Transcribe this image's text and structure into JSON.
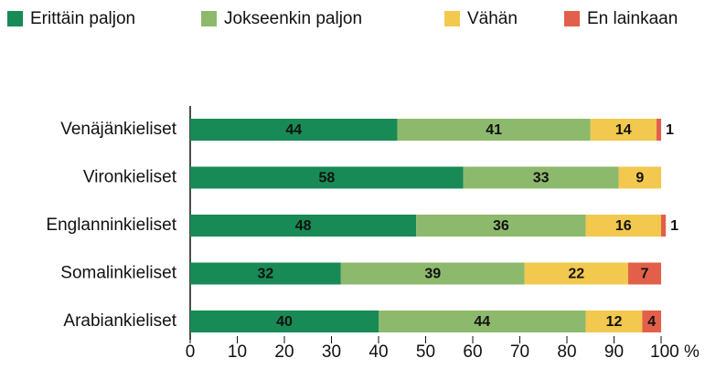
{
  "chart_data": {
    "type": "stacked-barh",
    "categories": [
      "Venäjänkieliset",
      "Vironkieliset",
      "Englanninkieliset",
      "Somalinkieliset",
      "Arabiankieliset"
    ],
    "series": [
      {
        "name": "Erittäin paljon",
        "color": "#188a55",
        "values": [
          44,
          58,
          48,
          32,
          40
        ]
      },
      {
        "name": "Jokseenkin paljon",
        "color": "#8db96c",
        "values": [
          41,
          33,
          36,
          39,
          44
        ]
      },
      {
        "name": "Vähän",
        "color": "#f2c84e",
        "values": [
          14,
          9,
          16,
          22,
          12
        ]
      },
      {
        "name": "En lainkaan",
        "color": "#e2604a",
        "values": [
          1,
          null,
          1,
          7,
          4
        ]
      }
    ],
    "xlim": [
      0,
      100
    ],
    "xticks": [
      0,
      10,
      20,
      30,
      40,
      50,
      60,
      70,
      80,
      90,
      {
        "value": 100,
        "label": "100 %"
      }
    ],
    "legend": "top"
  }
}
